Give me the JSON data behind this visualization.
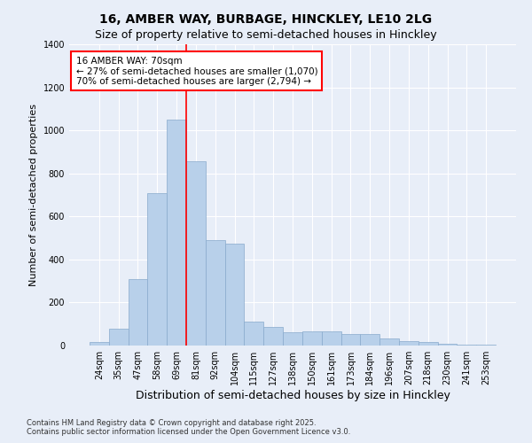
{
  "title1": "16, AMBER WAY, BURBAGE, HINCKLEY, LE10 2LG",
  "title2": "Size of property relative to semi-detached houses in Hinckley",
  "xlabel": "Distribution of semi-detached houses by size in Hinckley",
  "ylabel": "Number of semi-detached properties",
  "categories": [
    "24sqm",
    "35sqm",
    "47sqm",
    "58sqm",
    "69sqm",
    "81sqm",
    "92sqm",
    "104sqm",
    "115sqm",
    "127sqm",
    "138sqm",
    "150sqm",
    "161sqm",
    "173sqm",
    "184sqm",
    "196sqm",
    "207sqm",
    "218sqm",
    "230sqm",
    "241sqm",
    "253sqm"
  ],
  "values": [
    15,
    80,
    310,
    710,
    1050,
    855,
    490,
    475,
    110,
    85,
    60,
    65,
    65,
    55,
    55,
    35,
    20,
    15,
    10,
    5,
    5
  ],
  "bar_color": "#b8d0ea",
  "bar_edge_color": "#88aacc",
  "bar_width": 1.0,
  "ylim": [
    0,
    1400
  ],
  "red_line_index": 4.5,
  "annotation_title": "16 AMBER WAY: 70sqm",
  "annotation_line1": "← 27% of semi-detached houses are smaller (1,070)",
  "annotation_line2": "70% of semi-detached houses are larger (2,794) →",
  "footnote1": "Contains HM Land Registry data © Crown copyright and database right 2025.",
  "footnote2": "Contains public sector information licensed under the Open Government Licence v3.0.",
  "background_color": "#e8eef8",
  "plot_bg_color": "#e8eef8",
  "grid_color": "#ffffff",
  "title_fontsize": 10,
  "subtitle_fontsize": 9,
  "ylabel_fontsize": 8,
  "xlabel_fontsize": 9,
  "tick_fontsize": 7,
  "footnote_fontsize": 6,
  "annot_fontsize": 7.5
}
